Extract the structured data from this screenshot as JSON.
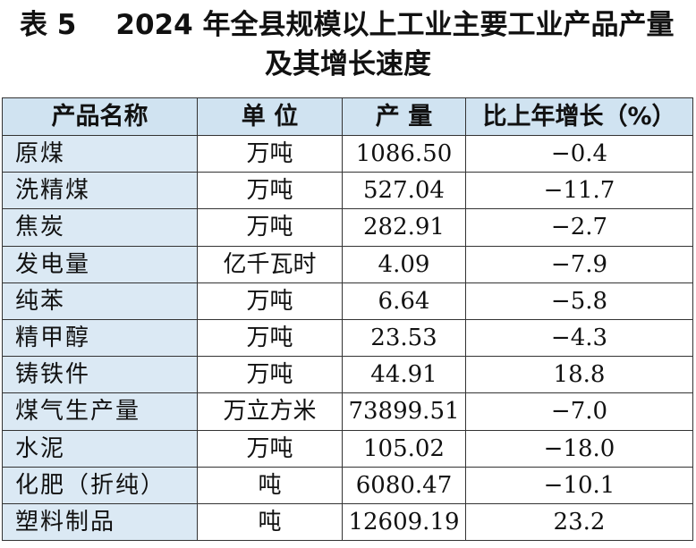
{
  "title": {
    "label": "表 5",
    "line1": "2024 年全县规模以上工业主要工业产品产量",
    "line2": "及其增长速度"
  },
  "table": {
    "headers": {
      "name": "产品名称",
      "unit": "单 位",
      "output": "产 量",
      "growth": "比上年增长（%）"
    },
    "rows": [
      {
        "name": "原煤",
        "unit": "万吨",
        "output": "1086.50",
        "growth": "−0.4"
      },
      {
        "name": "洗精煤",
        "unit": "万吨",
        "output": "527.04",
        "growth": "−11.7"
      },
      {
        "name": "焦炭",
        "unit": "万吨",
        "output": "282.91",
        "growth": "−2.7"
      },
      {
        "name": "发电量",
        "unit": "亿千瓦时",
        "output": "4.09",
        "growth": "−7.9"
      },
      {
        "name": "纯苯",
        "unit": "万吨",
        "output": "6.64",
        "growth": "−5.8"
      },
      {
        "name": "精甲醇",
        "unit": "万吨",
        "output": "23.53",
        "growth": "−4.3"
      },
      {
        "name": "铸铁件",
        "unit": "万吨",
        "output": "44.91",
        "growth": "18.8"
      },
      {
        "name": "煤气生产量",
        "unit": "万立方米",
        "output": "73899.51",
        "growth": "−7.0"
      },
      {
        "name": "水泥",
        "unit": "万吨",
        "output": "105.02",
        "growth": "−18.0"
      },
      {
        "name": "化肥（折纯）",
        "unit": "吨",
        "output": "6080.47",
        "growth": "−10.1"
      },
      {
        "name": "塑料制品",
        "unit": "吨",
        "output": "12609.19",
        "growth": "23.2"
      }
    ]
  }
}
